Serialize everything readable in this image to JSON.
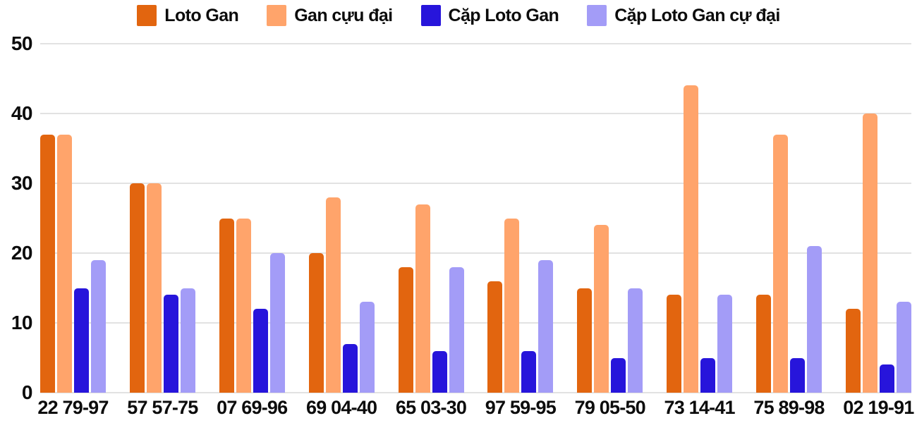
{
  "chart_data": {
    "type": "bar",
    "title": "",
    "xlabel": "",
    "ylabel": "",
    "ylim": [
      0,
      50
    ],
    "yticks": [
      0,
      10,
      20,
      30,
      40,
      50
    ],
    "grid": true,
    "legend_position": "top",
    "categories": [
      "22 79-97",
      "57 57-75",
      "07 69-96",
      "69 04-40",
      "65 03-30",
      "97 59-95",
      "79 05-50",
      "73 14-41",
      "75 89-98",
      "02 19-91"
    ],
    "series": [
      {
        "name": "Loto Gan",
        "color": "#E2650F",
        "values": [
          37,
          30,
          25,
          20,
          18,
          16,
          15,
          14,
          14,
          12
        ]
      },
      {
        "name": "Gan cựu đại",
        "color": "#FFA46B",
        "values": [
          37,
          30,
          25,
          28,
          27,
          25,
          24,
          44,
          37,
          40
        ]
      },
      {
        "name": "Cặp Loto Gan",
        "color": "#2715DB",
        "values": [
          15,
          14,
          12,
          7,
          6,
          6,
          5,
          5,
          5,
          4
        ]
      },
      {
        "name": "Cặp Loto Gan cự đại",
        "color": "#A39CF7",
        "values": [
          19,
          15,
          20,
          13,
          18,
          19,
          15,
          14,
          21,
          13
        ]
      }
    ],
    "colors": {
      "grid": "#e2e2e2",
      "text": "#0c0c0c",
      "background": "#ffffff"
    }
  }
}
